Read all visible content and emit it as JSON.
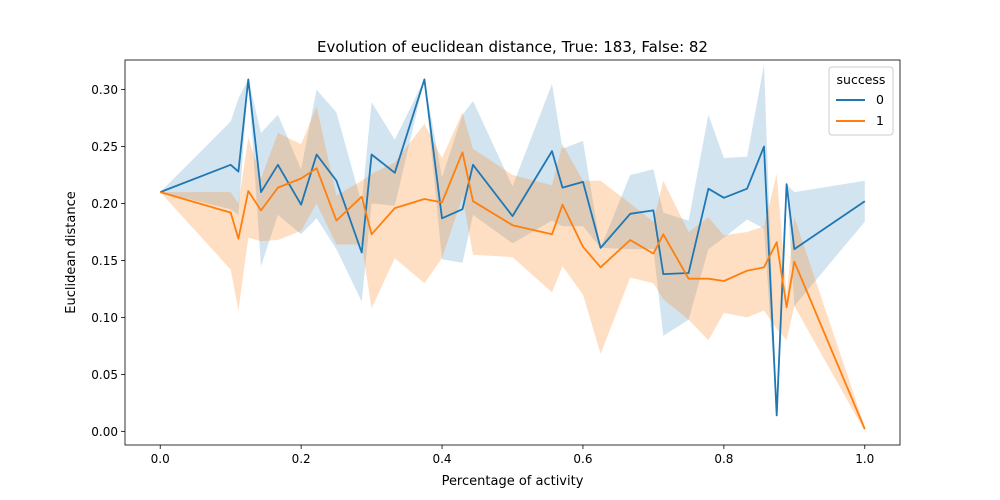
{
  "chart_data": {
    "type": "line",
    "title": "Evolution of euclidean distance, True: 183, False: 82",
    "xlabel": "Percentage of activity",
    "ylabel": "Euclidean distance",
    "xlim": [
      -0.05,
      1.05
    ],
    "ylim": [
      -0.012,
      0.326
    ],
    "xticks": [
      0.0,
      0.2,
      0.4,
      0.6,
      0.8,
      1.0
    ],
    "xtick_labels": [
      "0.0",
      "0.2",
      "0.4",
      "0.6",
      "0.8",
      "1.0"
    ],
    "yticks": [
      0.0,
      0.05,
      0.1,
      0.15,
      0.2,
      0.25,
      0.3
    ],
    "ytick_labels": [
      "0.00",
      "0.05",
      "0.10",
      "0.15",
      "0.20",
      "0.25",
      "0.30"
    ],
    "grid": false,
    "legend": {
      "title": "success",
      "placement": "top-right"
    },
    "series": [
      {
        "name": "0",
        "color": "#1f77b4",
        "band_opacity": 0.2,
        "x": [
          0.0,
          0.1,
          0.111,
          0.125,
          0.143,
          0.167,
          0.2,
          0.222,
          0.25,
          0.286,
          0.3,
          0.333,
          0.375,
          0.4,
          0.429,
          0.444,
          0.5,
          0.556,
          0.571,
          0.6,
          0.625,
          0.667,
          0.7,
          0.714,
          0.75,
          0.778,
          0.8,
          0.833,
          0.857,
          0.875,
          0.889,
          0.9,
          1.0
        ],
        "y": [
          0.21,
          0.234,
          0.228,
          0.309,
          0.21,
          0.234,
          0.199,
          0.243,
          0.22,
          0.157,
          0.243,
          0.227,
          0.309,
          0.187,
          0.195,
          0.234,
          0.189,
          0.246,
          0.214,
          0.219,
          0.161,
          0.191,
          0.194,
          0.138,
          0.139,
          0.213,
          0.205,
          0.213,
          0.25,
          0.014,
          0.217,
          0.16,
          0.202
        ],
        "lower": [
          0.21,
          0.195,
          0.19,
          0.309,
          0.145,
          0.19,
          0.173,
          0.187,
          0.16,
          0.114,
          0.2,
          0.198,
          0.309,
          0.151,
          0.148,
          0.19,
          0.165,
          0.185,
          0.18,
          0.18,
          0.161,
          0.16,
          0.16,
          0.084,
          0.098,
          0.16,
          0.17,
          0.186,
          0.178,
          0.014,
          0.217,
          0.11,
          0.184
        ],
        "upper": [
          0.21,
          0.272,
          0.292,
          0.309,
          0.262,
          0.278,
          0.23,
          0.3,
          0.28,
          0.2,
          0.289,
          0.256,
          0.309,
          0.223,
          0.278,
          0.29,
          0.215,
          0.305,
          0.248,
          0.255,
          0.161,
          0.225,
          0.23,
          0.192,
          0.185,
          0.278,
          0.24,
          0.241,
          0.322,
          0.014,
          0.217,
          0.21,
          0.22
        ]
      },
      {
        "name": "1",
        "color": "#ff7f0e",
        "band_opacity": 0.25,
        "x": [
          0.0,
          0.1,
          0.111,
          0.125,
          0.143,
          0.167,
          0.2,
          0.222,
          0.25,
          0.286,
          0.3,
          0.333,
          0.375,
          0.4,
          0.429,
          0.444,
          0.5,
          0.556,
          0.571,
          0.6,
          0.625,
          0.667,
          0.7,
          0.714,
          0.75,
          0.778,
          0.8,
          0.833,
          0.857,
          0.875,
          0.889,
          0.9,
          1.0
        ],
        "y": [
          0.21,
          0.192,
          0.169,
          0.211,
          0.194,
          0.214,
          0.222,
          0.231,
          0.185,
          0.206,
          0.173,
          0.196,
          0.204,
          0.201,
          0.245,
          0.202,
          0.181,
          0.173,
          0.199,
          0.162,
          0.144,
          0.168,
          0.156,
          0.173,
          0.134,
          0.134,
          0.132,
          0.141,
          0.144,
          0.166,
          0.109,
          0.149,
          0.002
        ],
        "lower": [
          0.21,
          0.142,
          0.106,
          0.17,
          0.167,
          0.168,
          0.176,
          0.2,
          0.164,
          0.164,
          0.108,
          0.152,
          0.13,
          0.152,
          0.206,
          0.155,
          0.153,
          0.122,
          0.145,
          0.12,
          0.068,
          0.135,
          0.13,
          0.116,
          0.098,
          0.08,
          0.104,
          0.1,
          0.106,
          0.09,
          0.08,
          0.11,
          0.0
        ],
        "upper": [
          0.21,
          0.21,
          0.2,
          0.258,
          0.222,
          0.262,
          0.252,
          0.285,
          0.207,
          0.22,
          0.226,
          0.236,
          0.27,
          0.24,
          0.28,
          0.248,
          0.225,
          0.216,
          0.252,
          0.22,
          0.22,
          0.2,
          0.184,
          0.22,
          0.175,
          0.188,
          0.172,
          0.175,
          0.18,
          0.226,
          0.12,
          0.188,
          0.004
        ]
      }
    ]
  }
}
